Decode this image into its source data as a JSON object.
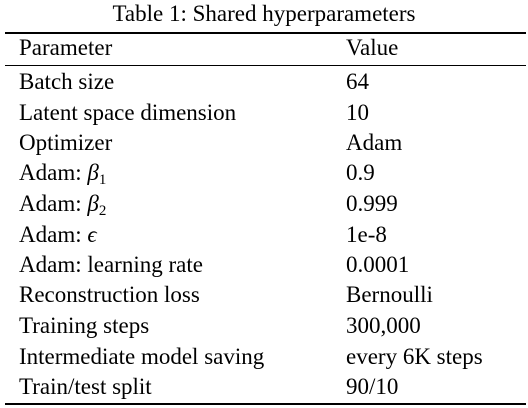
{
  "table": {
    "caption": "Table 1: Shared hyperparameters",
    "headers": [
      "Parameter",
      "Value"
    ],
    "rows": [
      {
        "param": "Batch size",
        "value": "64"
      },
      {
        "param": "Latent space dimension",
        "value": "10"
      },
      {
        "param": "Optimizer",
        "value": "Adam"
      },
      {
        "param_prefix": "Adam: ",
        "param_symbol": "β",
        "param_sub": "1",
        "value": "0.9"
      },
      {
        "param_prefix": "Adam: ",
        "param_symbol": "β",
        "param_sub": "2",
        "value": "0.999"
      },
      {
        "param_prefix": "Adam: ",
        "param_symbol": "ϵ",
        "value": "1e-8"
      },
      {
        "param": "Adam: learning rate",
        "value": "0.0001"
      },
      {
        "param": "Reconstruction loss",
        "value": "Bernoulli"
      },
      {
        "param": "Training steps",
        "value": "300,000"
      },
      {
        "param": "Intermediate model saving",
        "value": "every 6K steps"
      },
      {
        "param": "Train/test split",
        "value": "90/10"
      }
    ]
  }
}
